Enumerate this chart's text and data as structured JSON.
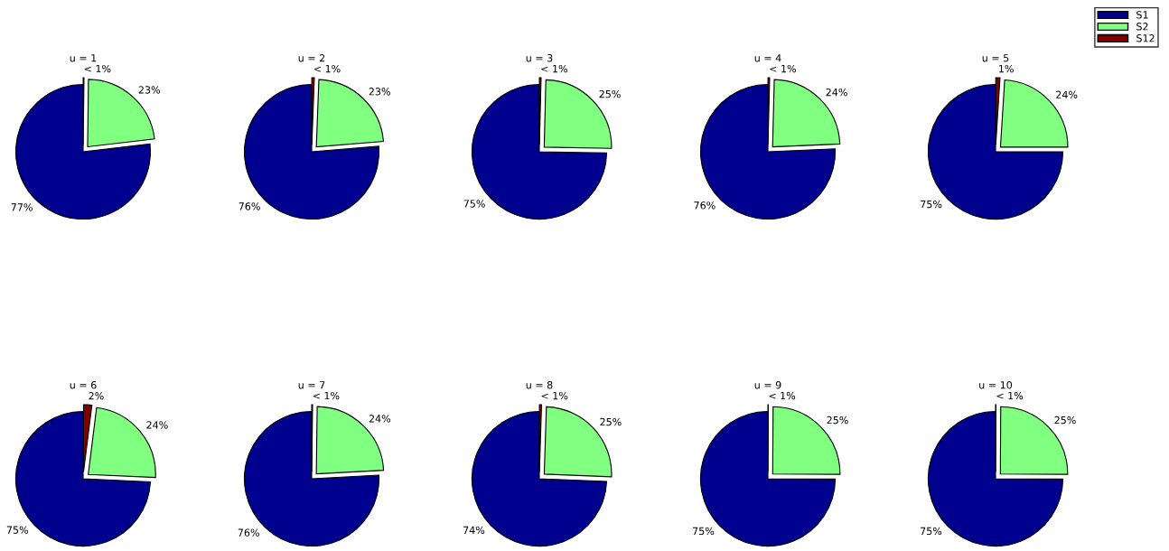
{
  "chart_data": [
    {
      "type": "pie",
      "title": "u = 1",
      "categories": [
        "S1",
        "S2",
        "S12"
      ],
      "values": [
        77,
        23,
        0.2
      ],
      "colors": [
        "#00008f",
        "#80ff80",
        "#800000"
      ],
      "value_labels": [
        "77%",
        "23%",
        "< 1%"
      ],
      "legend": "top right"
    },
    {
      "type": "pie",
      "title": "u = 2",
      "values": [
        76,
        23,
        0.6
      ],
      "colors": [
        "#00008f",
        "#80ff80",
        "#800000"
      ],
      "value_labels": [
        "76%",
        "23%",
        "< 1%"
      ]
    },
    {
      "type": "pie",
      "title": "u = 3",
      "values": [
        75,
        25,
        0.4
      ],
      "colors": [
        "#00008f",
        "#80ff80",
        "#800000"
      ],
      "value_labels": [
        "75%",
        "25%",
        "< 1%"
      ]
    },
    {
      "type": "pie",
      "title": "u = 4",
      "values": [
        76,
        24,
        0.4
      ],
      "colors": [
        "#00008f",
        "#80ff80",
        "#800000"
      ],
      "value_labels": [
        "76%",
        "24%",
        "< 1%"
      ]
    },
    {
      "type": "pie",
      "title": "u = 5",
      "values": [
        75,
        24,
        1
      ],
      "colors": [
        "#00008f",
        "#80ff80",
        "#800000"
      ],
      "value_labels": [
        "75%",
        "24%",
        "1%"
      ]
    },
    {
      "type": "pie",
      "title": "u = 6",
      "values": [
        75,
        24,
        2
      ],
      "colors": [
        "#00008f",
        "#80ff80",
        "#800000"
      ],
      "value_labels": [
        "75%",
        "24%",
        "2%"
      ]
    },
    {
      "type": "pie",
      "title": "u = 7",
      "values": [
        76,
        24,
        0.2
      ],
      "colors": [
        "#00008f",
        "#80ff80",
        "#800000"
      ],
      "value_labels": [
        "76%",
        "24%",
        "< 1%"
      ]
    },
    {
      "type": "pie",
      "title": "u = 8",
      "values": [
        74,
        25,
        0.5
      ],
      "colors": [
        "#00008f",
        "#80ff80",
        "#800000"
      ],
      "value_labels": [
        "74%",
        "25%",
        "< 1%"
      ]
    },
    {
      "type": "pie",
      "title": "u = 9",
      "values": [
        75,
        25,
        0.1
      ],
      "colors": [
        "#00008f",
        "#80ff80",
        "#800000"
      ],
      "value_labels": [
        "75%",
        "25%",
        "< 1%"
      ]
    },
    {
      "type": "pie",
      "title": "u = 10",
      "values": [
        75,
        25,
        0.1
      ],
      "colors": [
        "#00008f",
        "#80ff80",
        "#800000"
      ],
      "value_labels": [
        "75%",
        "25%",
        "< 1%"
      ]
    }
  ]
}
